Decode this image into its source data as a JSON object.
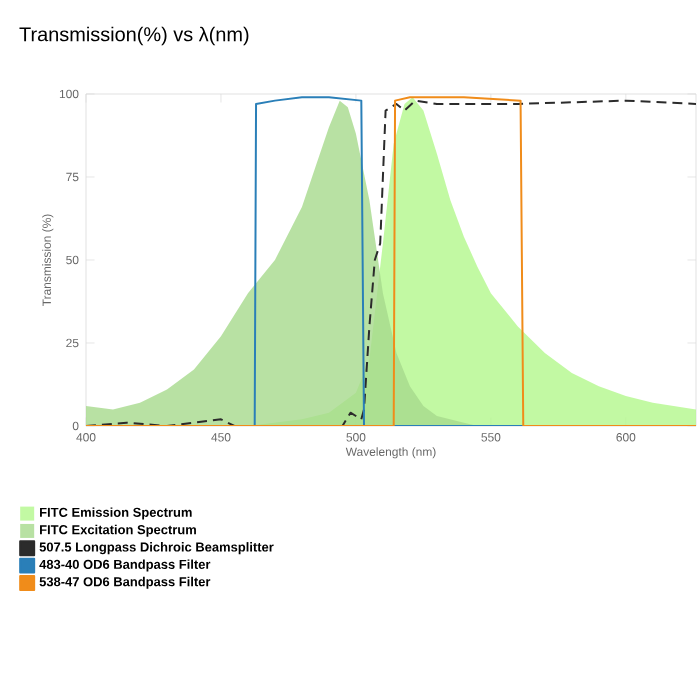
{
  "chart_data": {
    "type": "line",
    "title": "Transmission(%) vs λ(nm)",
    "xlabel": "Wavelength (nm)",
    "ylabel": "Transmission (%)",
    "xlim": [
      400,
      626
    ],
    "ylim": [
      0,
      100
    ],
    "xticks": [
      400,
      450,
      500,
      550,
      600
    ],
    "yticks": [
      0,
      25,
      50,
      75,
      100
    ],
    "legend": "bottom",
    "grid": false,
    "marker": "none",
    "series": [
      {
        "name": "FITC Emission Spectrum",
        "type": "area",
        "color": "#b3f78c",
        "x": [
          460,
          480,
          490,
          500,
          505,
          510,
          514,
          518,
          521,
          525,
          530,
          535,
          540,
          545,
          550,
          560,
          570,
          580,
          590,
          600,
          610,
          626
        ],
        "values": [
          0,
          2,
          4,
          10,
          20,
          55,
          85,
          97,
          99,
          95,
          82,
          68,
          57,
          48,
          40,
          30,
          22,
          16,
          12,
          9,
          7,
          5
        ]
      },
      {
        "name": "FITC Excitation Spectrum",
        "type": "area",
        "color": "#a6d98c",
        "x": [
          400,
          410,
          420,
          430,
          440,
          450,
          460,
          470,
          480,
          485,
          490,
          494,
          497,
          500,
          505,
          510,
          515,
          520,
          525,
          530,
          540,
          545
        ],
        "values": [
          6,
          5,
          7,
          11,
          17,
          27,
          40,
          50,
          66,
          78,
          90,
          98,
          96,
          88,
          68,
          40,
          22,
          12,
          6,
          3,
          1,
          0
        ]
      },
      {
        "name": "507.5 Longpass Dichroic Beamsplitter",
        "line_style": "dashed",
        "color": "#2b2b2b",
        "x": [
          400,
          415,
          430,
          450,
          455,
          480,
          495,
          498,
          502,
          503,
          505,
          507,
          509,
          511,
          515,
          518,
          522,
          530,
          560,
          600,
          626
        ],
        "values": [
          0,
          1,
          0,
          2,
          0,
          0,
          0,
          4,
          2,
          5,
          30,
          50,
          55,
          95,
          97,
          95,
          98,
          97,
          97,
          98,
          97
        ]
      },
      {
        "name": "483-40 OD6 Bandpass Filter",
        "color": "#2a7fb8",
        "x": [
          400,
          462.5,
          463,
          470,
          480,
          490,
          502,
          503,
          626
        ],
        "values": [
          0,
          0,
          97,
          98,
          99,
          99,
          98,
          0,
          0
        ]
      },
      {
        "name": "538-47 OD6 Bandpass Filter",
        "color": "#f08c1a",
        "x": [
          400,
          514,
          514.5,
          520,
          540,
          561,
          562,
          626
        ],
        "values": [
          0,
          0,
          98,
          99,
          99,
          98,
          0,
          0
        ]
      }
    ]
  }
}
